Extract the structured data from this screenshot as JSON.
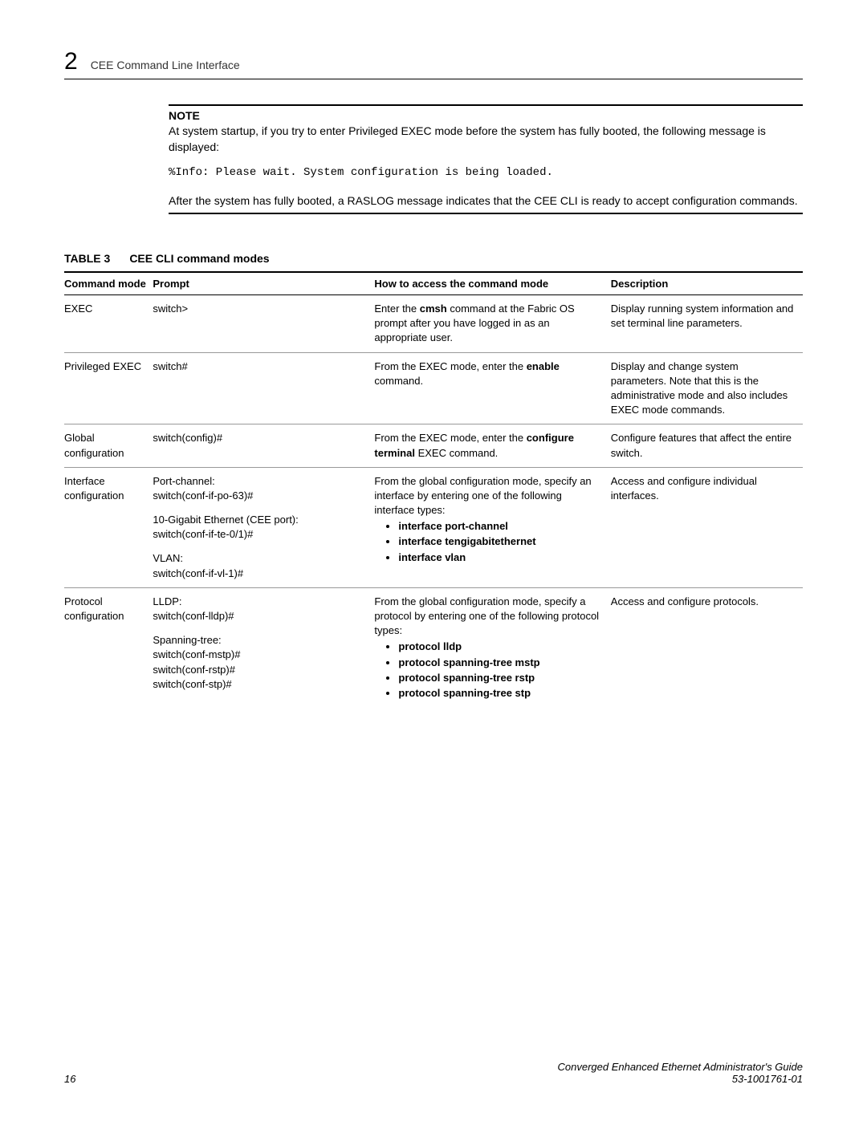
{
  "header": {
    "chapter_num": "2",
    "title": "CEE Command Line Interface"
  },
  "note": {
    "label": "NOTE",
    "text": "At system startup, if you try to enter Privileged EXEC mode before the system has fully booted, the following message is displayed:",
    "code": "%Info: Please wait. System configuration is being loaded.",
    "after": "After the system has fully booted, a RASLOG message indicates that the CEE CLI is ready to accept configuration commands."
  },
  "table": {
    "num": "TABLE 3",
    "caption": "CEE CLI command modes",
    "headers": {
      "mode": "Command mode",
      "prompt": "Prompt",
      "access": "How to access the command mode",
      "desc": "Description"
    },
    "rows": {
      "r0": {
        "mode": "EXEC",
        "prompt_line": "switch>",
        "access_pre": "Enter the ",
        "access_bold": "cmsh",
        "access_post": " command at the Fabric OS prompt after you have logged in as an appropriate user.",
        "desc": "Display running system information and set terminal line parameters."
      },
      "r1": {
        "mode": "Privileged EXEC",
        "prompt_line": "switch#",
        "access_pre": "From the EXEC mode, enter the ",
        "access_bold": "enable",
        "access_post": " command.",
        "desc": "Display and change system parameters. Note that this is the administrative mode and also includes EXEC mode commands."
      },
      "r2": {
        "mode": "Global configuration",
        "prompt_line": "switch(config)#",
        "access_pre": "From the EXEC mode, enter the ",
        "access_bold": "configure terminal",
        "access_post": " EXEC command.",
        "desc": "Configure features that affect the entire switch."
      },
      "r3": {
        "mode": "Interface configuration",
        "p1_label": "Port-channel:",
        "p1_line": "switch(conf-if-po-63)#",
        "p2_label": "10-Gigabit Ethernet (CEE port):",
        "p2_line": "switch(conf-if-te-0/1)#",
        "p3_label": "VLAN:",
        "p3_line": "switch(conf-if-vl-1)#",
        "access_pre": "From the global configuration mode, specify an interface by entering one of the following interface types:",
        "b1": "interface port-channel",
        "b2": "interface tengigabitethernet",
        "b3": "interface vlan",
        "desc": "Access and configure individual interfaces."
      },
      "r4": {
        "mode": "Protocol configuration",
        "p1_label": "LLDP:",
        "p1_line": "switch(conf-lldp)#",
        "p2_label": "Spanning-tree:",
        "p2_line1": "switch(conf-mstp)#",
        "p2_line2": "switch(conf-rstp)#",
        "p2_line3": "switch(conf-stp)#",
        "access_pre": "From the global configuration mode, specify a protocol by entering one of the following protocol types:",
        "b1": "protocol lldp",
        "b2": "protocol spanning-tree mstp",
        "b3": "protocol spanning-tree rstp",
        "b4": "protocol spanning-tree stp",
        "desc": "Access and configure protocols."
      }
    }
  },
  "footer": {
    "page_num": "16",
    "guide": "Converged Enhanced Ethernet Administrator's Guide",
    "doc_id": "53-1001761-01"
  }
}
